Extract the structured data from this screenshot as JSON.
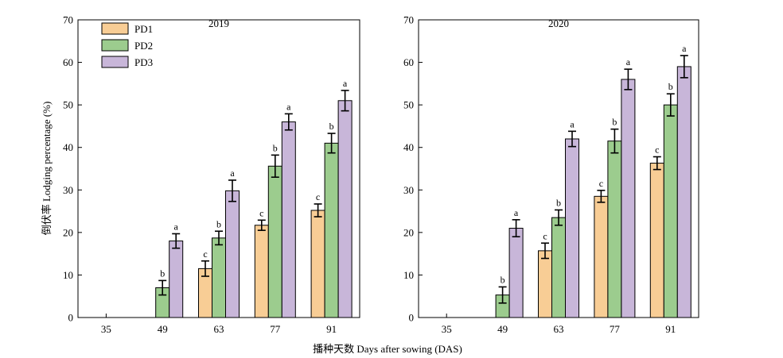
{
  "chart_data": {
    "type": "bar",
    "ylabel": "倒伏率 Lodging percentage (%)",
    "xlabel": "播种天数 Days after  sowing (DAS)",
    "categories": [
      "35",
      "49",
      "63",
      "77",
      "91"
    ],
    "ylim": [
      0,
      70
    ],
    "yticks": [
      0,
      10,
      20,
      30,
      40,
      50,
      60,
      70
    ],
    "colors": {
      "PD1": "#f8cd95",
      "PD2": "#9ccc8e",
      "PD3": "#c8b6d9"
    },
    "legend": {
      "entries": [
        "PD1",
        "PD2",
        "PD3"
      ],
      "placement": "top-left"
    },
    "panels": [
      {
        "title": "2019",
        "series": [
          {
            "name": "PD1",
            "values": [
              null,
              null,
              11.5,
              21.7,
              25.2
            ],
            "errors": [
              null,
              null,
              1.8,
              1.2,
              1.5
            ],
            "labels": [
              null,
              null,
              "c",
              "c",
              "c"
            ]
          },
          {
            "name": "PD2",
            "values": [
              null,
              7.0,
              18.7,
              35.6,
              41.0
            ],
            "errors": [
              null,
              1.7,
              1.6,
              2.6,
              2.3
            ],
            "labels": [
              null,
              "b",
              "b",
              "b",
              "b"
            ]
          },
          {
            "name": "PD3",
            "values": [
              null,
              18.0,
              29.8,
              46.0,
              51.0
            ],
            "errors": [
              null,
              1.7,
              2.5,
              1.9,
              2.4
            ],
            "labels": [
              null,
              "a",
              "a",
              "a",
              "a"
            ]
          }
        ]
      },
      {
        "title": "2020",
        "series": [
          {
            "name": "PD1",
            "values": [
              null,
              null,
              15.7,
              28.5,
              36.3
            ],
            "errors": [
              null,
              null,
              1.8,
              1.4,
              1.5
            ],
            "labels": [
              null,
              null,
              "c",
              "c",
              "c"
            ]
          },
          {
            "name": "PD2",
            "values": [
              null,
              5.3,
              23.5,
              41.5,
              50.0
            ],
            "errors": [
              null,
              1.9,
              1.8,
              2.8,
              2.6
            ],
            "labels": [
              null,
              "b",
              "b",
              "b",
              "b"
            ]
          },
          {
            "name": "PD3",
            "values": [
              null,
              21.0,
              42.0,
              56.0,
              59.0
            ],
            "errors": [
              null,
              2.0,
              1.8,
              2.4,
              2.6
            ],
            "labels": [
              null,
              "a",
              "a",
              "a",
              "a"
            ]
          }
        ]
      }
    ]
  }
}
